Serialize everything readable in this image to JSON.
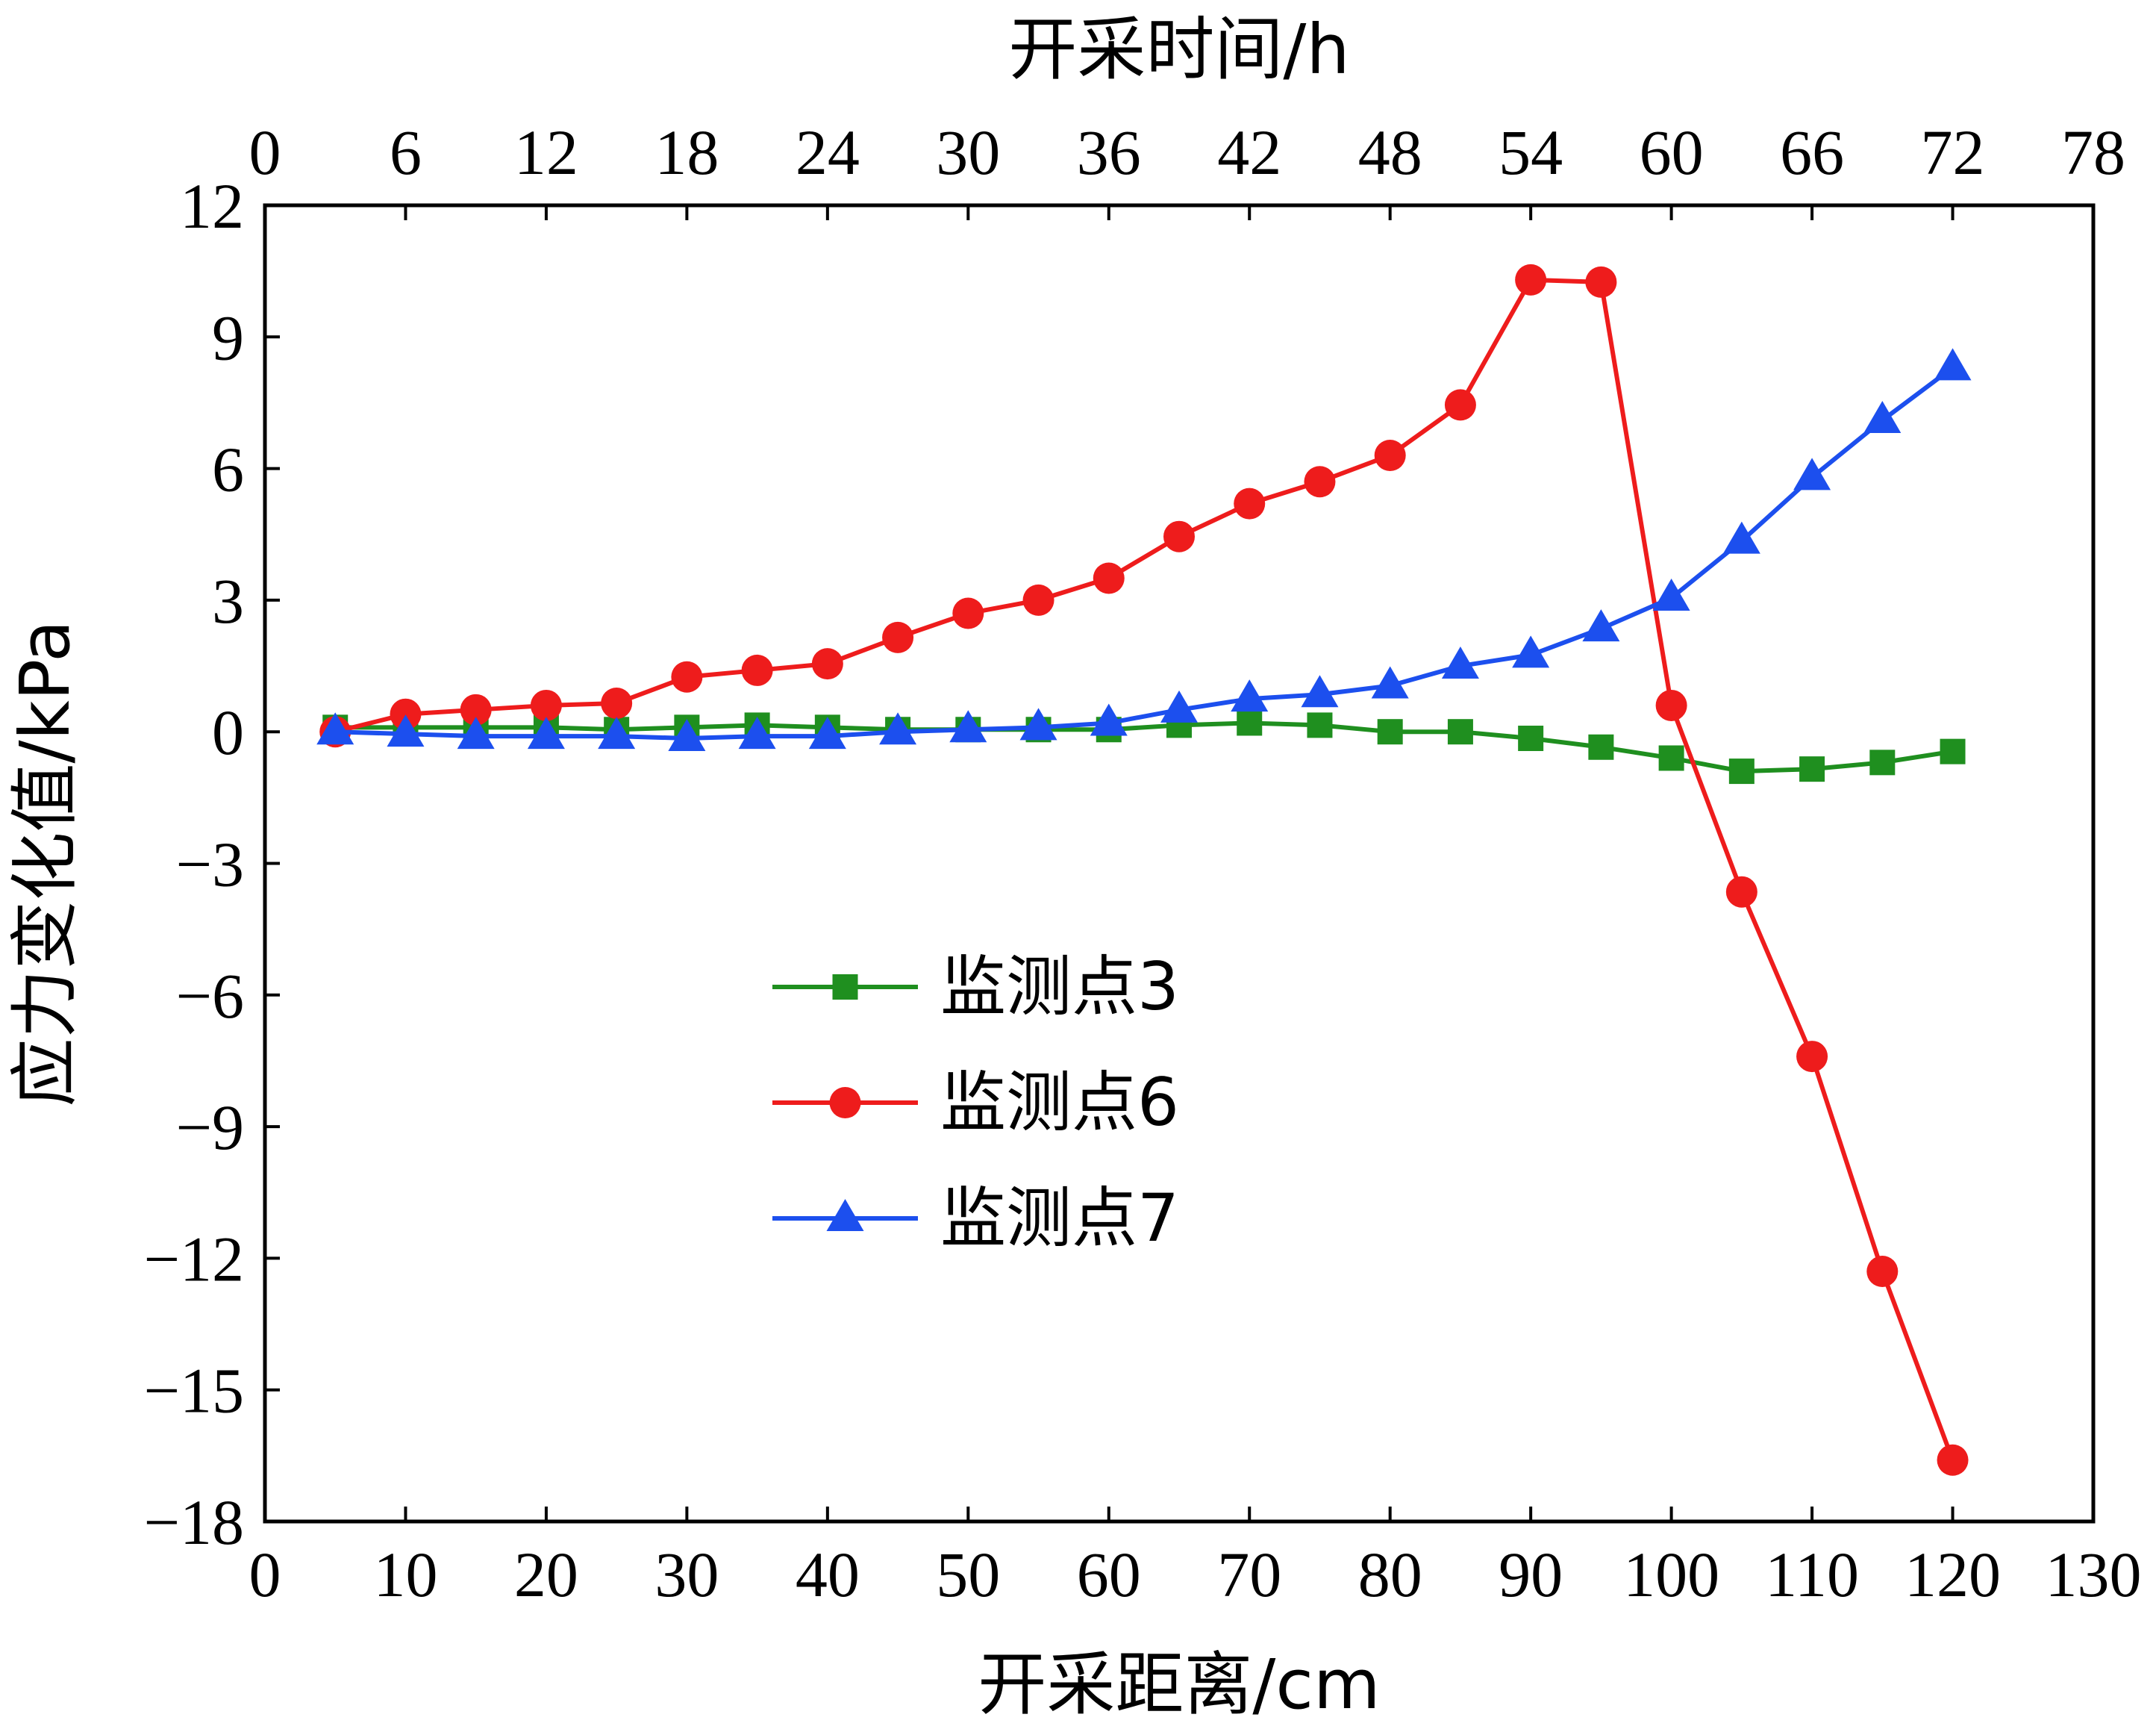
{
  "chart_data": {
    "type": "line",
    "xlabel": "开采距离/cm",
    "x2label": "开采时间/h",
    "ylabel": "应力变化值/kPa",
    "xlim": [
      0,
      130
    ],
    "x2lim": [
      0,
      78
    ],
    "ylim": [
      -18,
      12
    ],
    "xticks": [
      0,
      10,
      20,
      30,
      40,
      50,
      60,
      70,
      80,
      90,
      100,
      110,
      120,
      130
    ],
    "x2ticks": [
      0,
      6,
      12,
      18,
      24,
      30,
      36,
      42,
      48,
      54,
      60,
      66,
      72,
      78
    ],
    "yticks": [
      12,
      9,
      6,
      3,
      0,
      -3,
      -6,
      -9,
      -12,
      -15,
      -18
    ],
    "ytick_labels": [
      "12",
      "9",
      "6",
      "3",
      "0",
      "−3",
      "−6",
      "−9",
      "−12",
      "−15",
      "−18"
    ],
    "grid": false,
    "legend_position": "lower-center",
    "x": [
      5,
      10,
      15,
      20,
      25,
      30,
      35,
      40,
      45,
      50,
      55,
      60,
      65,
      70,
      75,
      80,
      85,
      90,
      95,
      100,
      105,
      110,
      115,
      120
    ],
    "series": [
      {
        "name": "监测点3",
        "color": "#1f8f1f",
        "marker": "square",
        "values": [
          0.1,
          0.1,
          0.1,
          0.1,
          0.05,
          0.1,
          0.15,
          0.1,
          0.05,
          0.05,
          0.05,
          0.05,
          0.15,
          0.2,
          0.15,
          0.0,
          0.0,
          -0.15,
          -0.35,
          -0.6,
          -0.9,
          -0.85,
          -0.7,
          -0.45
        ]
      },
      {
        "name": "监测点6",
        "color": "#ee1c1c",
        "marker": "circle",
        "values": [
          0.0,
          0.4,
          0.5,
          0.6,
          0.65,
          1.25,
          1.4,
          1.55,
          2.15,
          2.7,
          3.0,
          3.5,
          4.45,
          5.2,
          5.7,
          6.3,
          7.45,
          10.3,
          10.25,
          0.6,
          -3.65,
          -7.4,
          -12.3,
          -16.6
        ]
      },
      {
        "name": "监测点7",
        "color": "#1c4fee",
        "marker": "triangle",
        "values": [
          0.0,
          -0.05,
          -0.1,
          -0.1,
          -0.1,
          -0.15,
          -0.1,
          -0.1,
          0.0,
          0.05,
          0.1,
          0.2,
          0.5,
          0.75,
          0.85,
          1.05,
          1.5,
          1.75,
          2.35,
          3.05,
          4.35,
          5.8,
          7.1,
          8.3
        ]
      }
    ]
  }
}
